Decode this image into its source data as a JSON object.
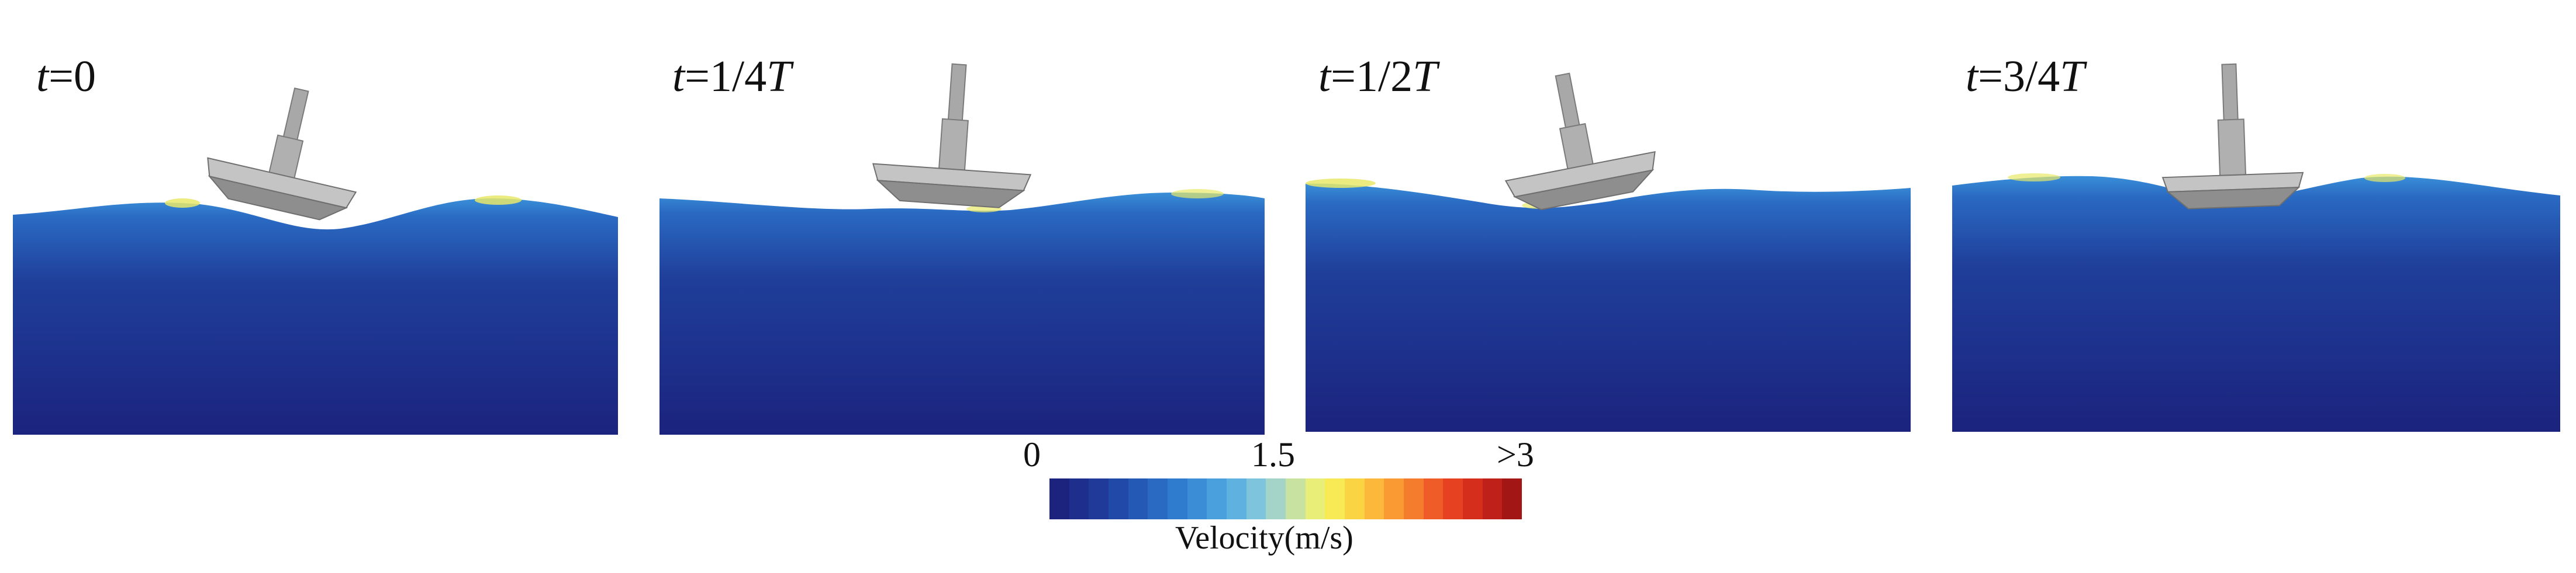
{
  "panels": [
    {
      "time_var": "t",
      "time_value": "=0",
      "time_unit": "",
      "tilt_deg": 13
    },
    {
      "time_var": "t",
      "time_value": "=1/4",
      "time_unit": "T",
      "tilt_deg": 4
    },
    {
      "time_var": "t",
      "time_value": "=1/2",
      "time_unit": "T",
      "tilt_deg": -11
    },
    {
      "time_var": "t",
      "time_value": "=3/4",
      "time_unit": "T",
      "tilt_deg": -2
    }
  ],
  "colorbar": {
    "title": "Velocity(m/s)",
    "tick_min": "0",
    "tick_mid": "1.5",
    "tick_max": ">3",
    "colors": [
      "#1b237e",
      "#1d2e8c",
      "#1f3a99",
      "#214aa8",
      "#2459b6",
      "#2a6ac3",
      "#2f7bcd",
      "#3b8ed6",
      "#4aa0dc",
      "#5fb2df",
      "#7ec4dc",
      "#a3d4c7",
      "#c8e2a2",
      "#e8ee78",
      "#f7ea54",
      "#fbd444",
      "#fbb83a",
      "#f99a33",
      "#f57b2d",
      "#ef5c27",
      "#e64121",
      "#d62e1d",
      "#c0201a",
      "#a31616"
    ]
  },
  "colors": {
    "water_top": "#2f7fcf",
    "water_mid": "#1f3f9a",
    "water_bottom": "#1b237e",
    "crest": "#e8e86a",
    "float": "#9a9a9a"
  }
}
